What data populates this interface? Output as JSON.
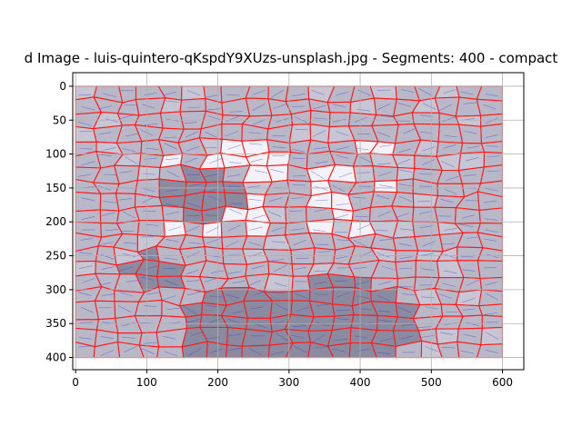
{
  "chart_data": {
    "type": "image",
    "title": "d Image - luis-quintero-qKspdY9XUzs-unsplash.jpg - Segments: 400 - compact",
    "xlabel": "",
    "ylabel": "",
    "xlim": [
      -4,
      630
    ],
    "ylim": [
      418,
      -20
    ],
    "image_extent": {
      "x": [
        0,
        600
      ],
      "y": [
        0,
        400
      ]
    },
    "x_ticks": [
      0,
      100,
      200,
      300,
      400,
      500,
      600
    ],
    "y_ticks": [
      0,
      50,
      100,
      150,
      200,
      250,
      300,
      350,
      400
    ],
    "grid": true,
    "segments": 400,
    "colors": {
      "background": "#ffffff",
      "image_fill": "#b8b8c8",
      "segment_boundary": "#ff1a1a",
      "segment_inner_line": "#3b3bc8",
      "grid": "#b0b0b0",
      "dark_region": "#8a8aa0",
      "light_region": "#f2f2f8"
    }
  }
}
